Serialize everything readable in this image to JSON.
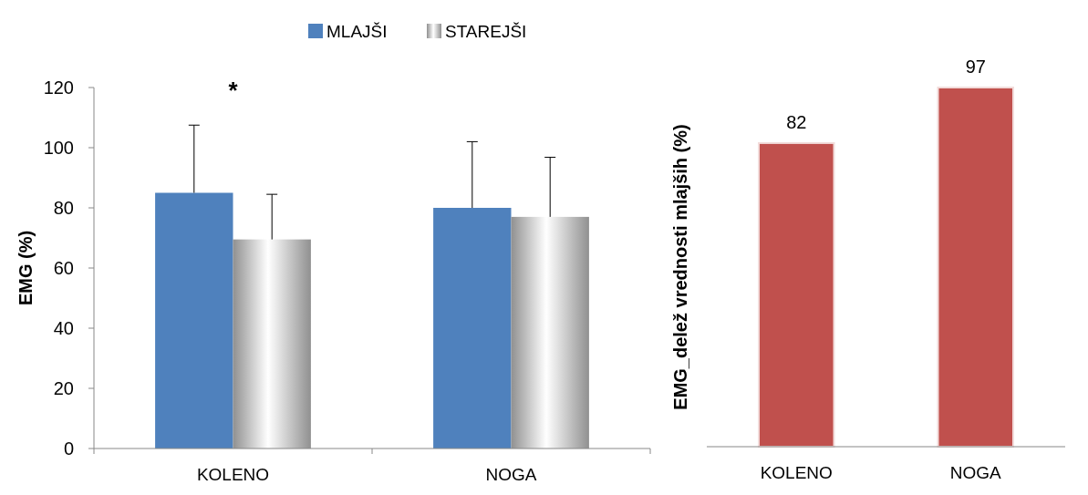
{
  "chart_data": [
    {
      "type": "bar",
      "ylabel": "EMG (%)",
      "categories": [
        "KOLENO",
        "NOGA"
      ],
      "series": [
        {
          "name": "MLAJŠI",
          "color": "#4f81bd",
          "values": [
            85,
            80
          ],
          "errors": [
            [
              85,
              107.5
            ],
            [
              80,
              102
            ]
          ]
        },
        {
          "name": "STAREJŠI",
          "color": "#a6a6a6",
          "values": [
            69.5,
            77
          ],
          "errors": [
            [
              69.5,
              84.5
            ],
            [
              77,
              96.8
            ]
          ]
        }
      ],
      "ylim": [
        0,
        120
      ],
      "yticks": [
        0,
        20,
        40,
        60,
        80,
        100,
        120
      ],
      "grid": false,
      "legend": "top",
      "annotations": [
        "*"
      ]
    },
    {
      "type": "bar",
      "ylabel": "EMG_delež vrednosti mlajših (%)",
      "categories": [
        "KOLENO",
        "NOGA"
      ],
      "values": [
        82,
        97
      ],
      "color": "#c0504d",
      "data_labels": true,
      "tick_labels": "x"
    }
  ]
}
